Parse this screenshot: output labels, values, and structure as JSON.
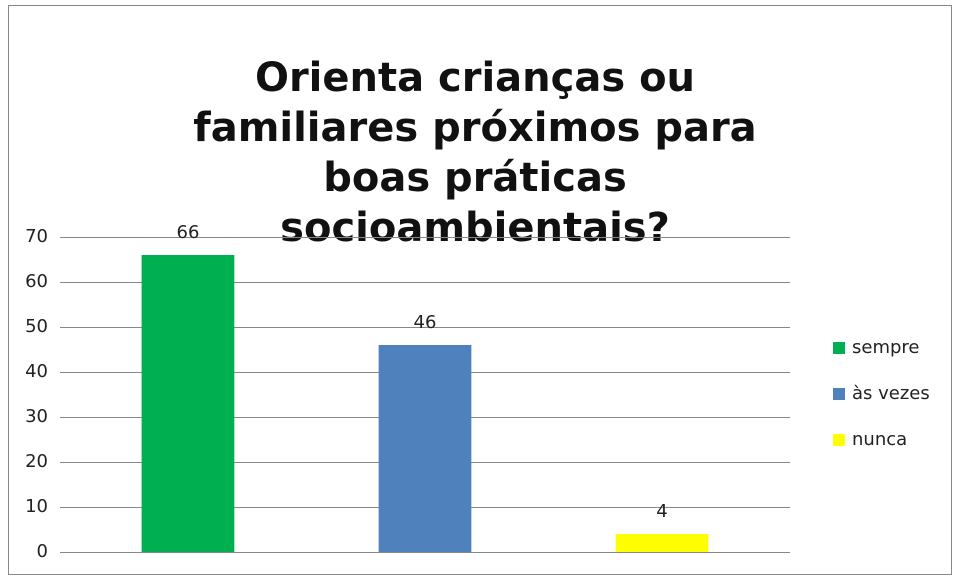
{
  "chart_data": {
    "type": "bar",
    "title": "Orienta crianças ou familiares próximos para boas práticas socioambientais?",
    "categories": [
      null
    ],
    "series": [
      {
        "name": "sempre",
        "color": "#00b050",
        "values": [
          66
        ]
      },
      {
        "name": "às vezes",
        "color": "#4f81bd",
        "values": [
          46
        ]
      },
      {
        "name": "nunca",
        "color": "#ffff00",
        "values": [
          4
        ]
      }
    ],
    "ylim": [
      0,
      70
    ],
    "yticks": [
      0,
      10,
      20,
      30,
      40,
      50,
      60,
      70
    ],
    "grid": true,
    "legend": "right"
  }
}
